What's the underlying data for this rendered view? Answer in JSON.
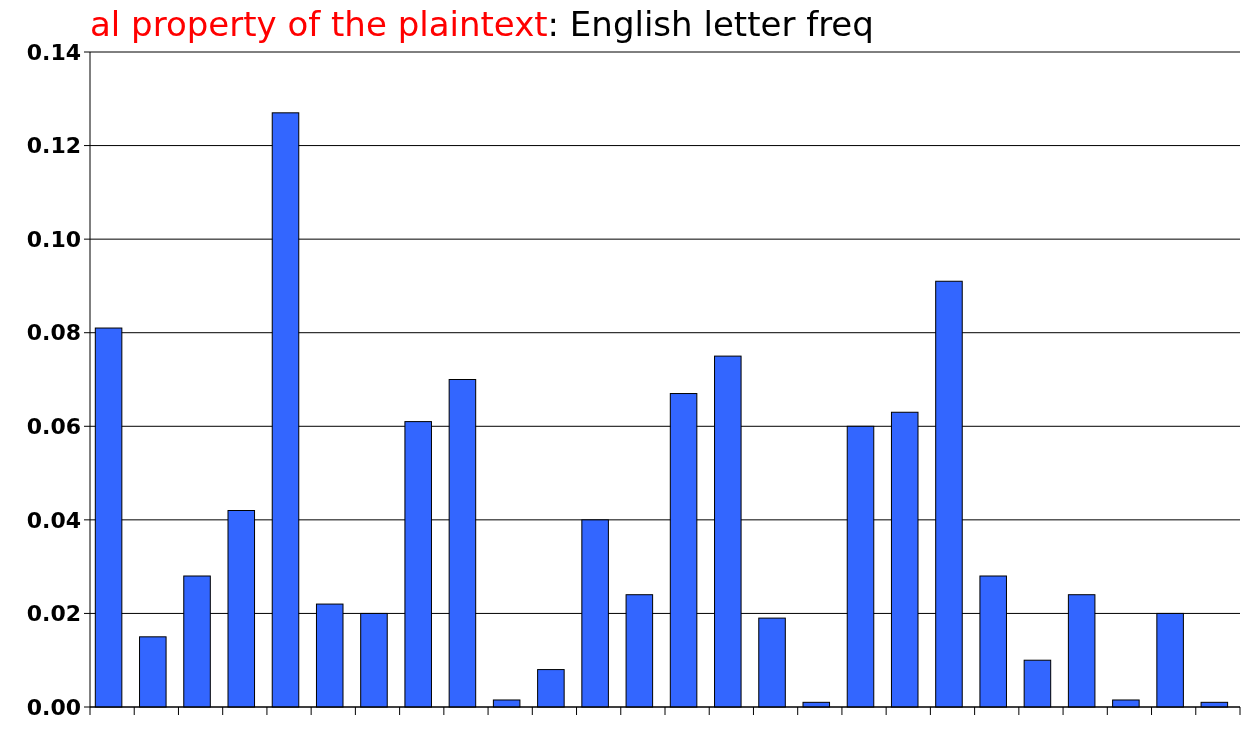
{
  "chart_data": {
    "type": "bar",
    "title": "al property of the plaintext",
    "subtitle": ": English letter freq",
    "categories": [
      null,
      null,
      null,
      null,
      null,
      null,
      null,
      null,
      null,
      null,
      null,
      null,
      null,
      null,
      null,
      null,
      null,
      null,
      null,
      null,
      null,
      null,
      null,
      null,
      null,
      null
    ],
    "values": [
      0.081,
      0.015,
      0.028,
      0.042,
      0.127,
      0.022,
      0.02,
      0.061,
      0.07,
      0.0015,
      0.008,
      0.04,
      0.024,
      0.067,
      0.075,
      0.019,
      0.001,
      0.06,
      0.063,
      0.091,
      0.028,
      0.01,
      0.024,
      0.0015,
      0.02,
      0.001
    ],
    "color": "#3366ff",
    "ylim": [
      0,
      0.14
    ],
    "yticks": [
      {
        "value": 0,
        "label": "0.00"
      },
      {
        "value": 0.02,
        "label": "0.02"
      },
      {
        "value": 0.04,
        "label": "0.04"
      },
      {
        "value": 0.06,
        "label": "0.06"
      },
      {
        "value": 0.08,
        "label": "0.08"
      },
      {
        "value": 0.1,
        "label": "0.10"
      },
      {
        "value": 0.12,
        "label": "0.12"
      },
      {
        "value": 0.14,
        "label": "0.14"
      }
    ],
    "grid": "y"
  }
}
